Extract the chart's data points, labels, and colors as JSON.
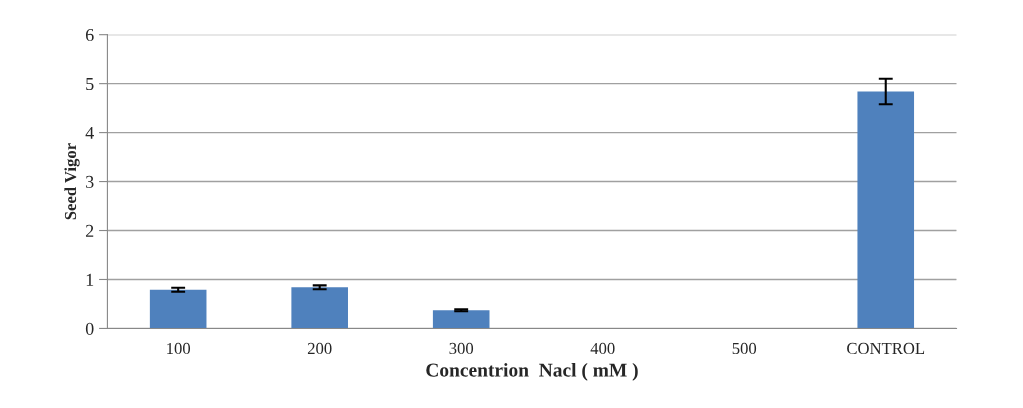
{
  "chart_data": {
    "type": "bar",
    "xlabel": "Concentrion  Nacl ( mM )",
    "ylabel": "Seed Vigor",
    "categories": [
      "100",
      "200",
      "300",
      "400",
      "500",
      "CONTROL"
    ],
    "values": [
      0.79,
      0.84,
      0.37,
      null,
      null,
      4.84
    ],
    "errors": [
      0.04,
      0.04,
      0.02,
      null,
      null,
      0.26
    ],
    "color": "#4f81bd",
    "ylim": [
      0,
      6
    ],
    "yticks": [
      0,
      1,
      2,
      3,
      4,
      5,
      6
    ],
    "grid": "y"
  }
}
